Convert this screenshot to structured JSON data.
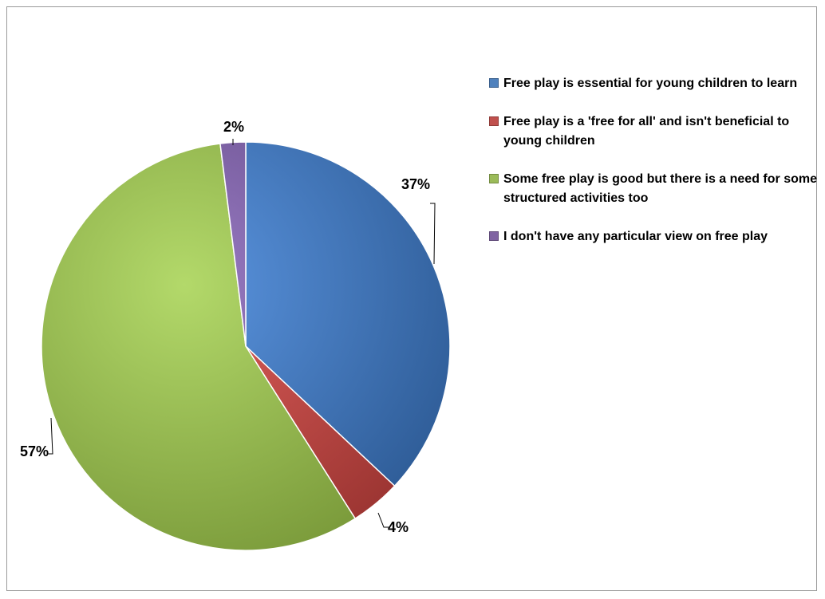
{
  "chart_data": {
    "type": "pie",
    "title": "",
    "legend_position": "right",
    "slices": [
      {
        "label": "Free play is essential for young children to learn",
        "value": 37,
        "display": "37%",
        "color": "#4f81bd",
        "color_light": "#5b95e0",
        "color_dark": "#2f5d98"
      },
      {
        "label": "Free play is a 'free for all' and isn't beneficial to young children",
        "value": 4,
        "display": "4%",
        "color": "#c0504d",
        "color_light": "#e0605c",
        "color_dark": "#9c3532"
      },
      {
        "label": "Some free play is good but there is a need for some structured activities too",
        "value": 57,
        "display": "57%",
        "color": "#9bbb59",
        "color_light": "#b3d96a",
        "color_dark": "#7a9a3a"
      },
      {
        "label": "I don't have any particular view on free play",
        "value": 2,
        "display": "2%",
        "color": "#8064a2",
        "color_light": "#9a7cc4",
        "color_dark": "#5e4682"
      }
    ]
  }
}
